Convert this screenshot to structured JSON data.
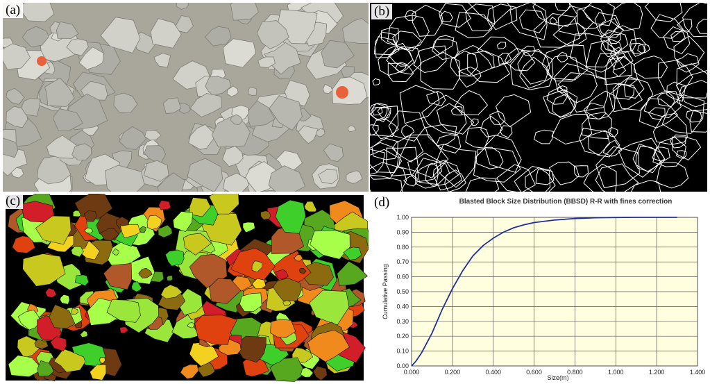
{
  "panels": {
    "a": {
      "label": "(a)"
    },
    "b": {
      "label": "(b)"
    },
    "c": {
      "label": "(c)"
    },
    "d": {
      "label": "(d)"
    }
  },
  "colors": {
    "rock": "#c9c8c0",
    "ground": "#a9a79c",
    "marker": "#e8603c",
    "edge": "#ffffff",
    "plot_bg": "#ffffe0",
    "curve": "#1f2fa0",
    "grid": "#555555"
  },
  "chart_data": {
    "type": "line",
    "title": "Blasted Block Size Distribution (BBSD) R-R with fines correction",
    "xlabel": "Size(m)",
    "ylabel": "Cumulative Passing",
    "xlim": [
      0,
      1.4
    ],
    "ylim": [
      0,
      1
    ],
    "x_ticks": [
      "0.000",
      "0.200",
      "0.400",
      "0.600",
      "0.800",
      "1.000",
      "1.200",
      "1.400"
    ],
    "y_ticks": [
      "0.00",
      "0.10",
      "0.20",
      "0.30",
      "0.40",
      "0.50",
      "0.60",
      "0.70",
      "0.80",
      "0.90",
      "1.00"
    ],
    "grid": true,
    "series": [
      {
        "x": [
          0,
          0.02,
          0.05,
          0.1,
          0.15,
          0.2,
          0.25,
          0.3,
          0.35,
          0.4,
          0.45,
          0.5,
          0.55,
          0.6,
          0.7,
          0.8,
          0.9,
          1.0,
          1.1,
          1.2,
          1.3
        ],
        "y": [
          0,
          0.03,
          0.09,
          0.22,
          0.38,
          0.52,
          0.64,
          0.74,
          0.81,
          0.86,
          0.9,
          0.93,
          0.95,
          0.965,
          0.982,
          0.992,
          0.997,
          0.999,
          1.0,
          1.0,
          1.0
        ]
      }
    ]
  }
}
